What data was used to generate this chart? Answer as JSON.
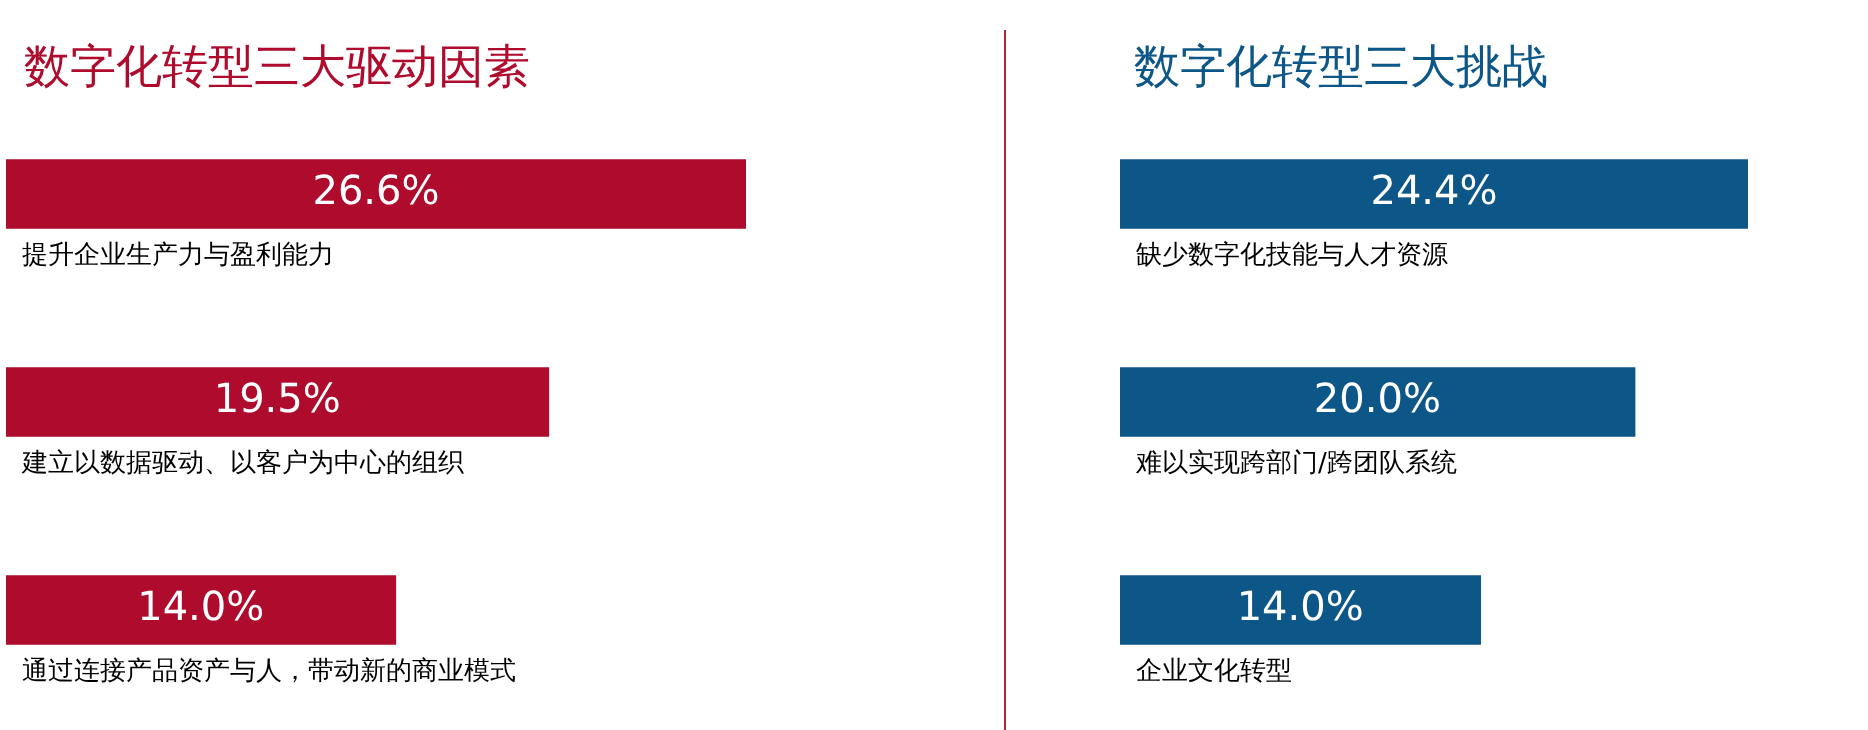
{
  "chart_data": [
    {
      "type": "bar",
      "orientation": "horizontal",
      "title": "数字化转型三大驱动因素",
      "categories": [
        "提升企业生产力与盈利能力",
        "建立以数据驱动、以客户为中心的组织",
        "通过连接产品资产与人，带动新的商业模式"
      ],
      "values": [
        26.6,
        19.5,
        14.0
      ],
      "value_labels": [
        "26.6%",
        "19.5%",
        "14.0%"
      ],
      "color": "#ae0b2d"
    },
    {
      "type": "bar",
      "orientation": "horizontal",
      "title": "数字化转型三大挑战",
      "categories": [
        "缺少数字化技能与人才资源",
        "难以实现跨部门/跨团队系统",
        "企业文化转型"
      ],
      "values": [
        24.4,
        20.0,
        14.0
      ],
      "value_labels": [
        "24.4%",
        "20.0%",
        "14.0%"
      ],
      "color": "#0c5787"
    }
  ]
}
